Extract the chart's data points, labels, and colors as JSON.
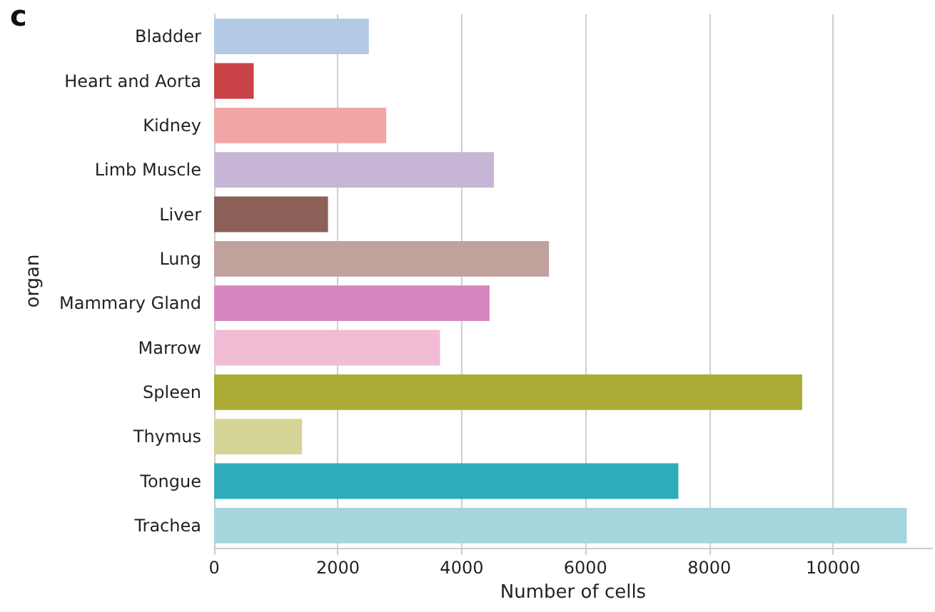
{
  "chart_data": {
    "type": "bar",
    "orientation": "horizontal",
    "title": "c",
    "xlabel": "Number of cells",
    "ylabel": "organ",
    "categories": [
      "Bladder",
      "Heart and Aorta",
      "Kidney",
      "Limb Muscle",
      "Liver",
      "Lung",
      "Mammary Gland",
      "Marrow",
      "Spleen",
      "Thymus",
      "Tongue",
      "Trachea"
    ],
    "values": [
      2500,
      640,
      2780,
      4520,
      1840,
      5410,
      4450,
      3650,
      9500,
      1420,
      7500,
      11190
    ],
    "colors": [
      "#b3c9e6",
      "#c94245",
      "#f2a5a5",
      "#c6b5d4",
      "#8c5f57",
      "#c1a19b",
      "#d786c0",
      "#f0bdd5",
      "#aaab35",
      "#d4d497",
      "#2eacbb",
      "#a6d5de"
    ],
    "xlim": [
      0,
      11600
    ],
    "xticks": [
      0,
      2000,
      4000,
      6000,
      8000,
      10000
    ],
    "grid": "x"
  }
}
